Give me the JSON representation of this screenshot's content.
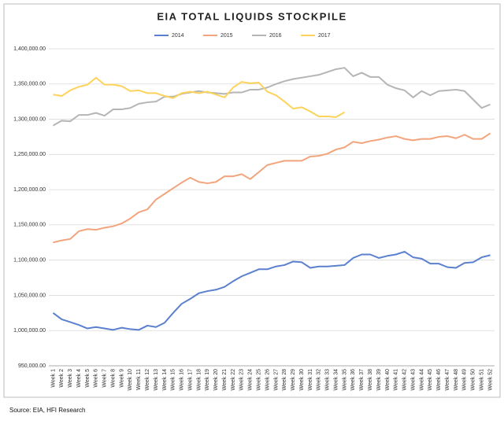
{
  "chart_data": {
    "type": "line",
    "title": "EIA TOTAL LIQUIDS STOCKPILE",
    "source": "Source: EIA, HFI Research",
    "categories": [
      "Week 1",
      "Week 2",
      "Week 3",
      "Week 4",
      "Week 5",
      "Week 6",
      "Week 7",
      "Week 8",
      "Week 9",
      "Week 10",
      "Week 11",
      "Week 12",
      "Week 13",
      "Week 14",
      "Week 15",
      "Week 16",
      "Week 17",
      "Week 18",
      "Week 19",
      "Week 20",
      "Week 21",
      "Week 22",
      "Week 23",
      "Week 24",
      "Week 25",
      "Week 26",
      "Week 27",
      "Week 28",
      "Week 29",
      "Week 30",
      "Week 31",
      "Week 32",
      "Week 33",
      "Week 34",
      "Week 35",
      "Week 36",
      "Week 37",
      "Week 38",
      "Week 39",
      "Week 40",
      "Week 41",
      "Week 42",
      "Week 43",
      "Week 44",
      "Week 45",
      "Week 46",
      "Week 47",
      "Week 48",
      "Week 49",
      "Week 50",
      "Week 51",
      "Week 52"
    ],
    "series": [
      {
        "name": "2014",
        "color": "#5b80cf",
        "values": [
          1025000,
          1016000,
          1012000,
          1008000,
          1003000,
          1005000,
          1003000,
          1001000,
          1004000,
          1002000,
          1001000,
          1007000,
          1005000,
          1011000,
          1025000,
          1038000,
          1045000,
          1053000,
          1056000,
          1058000,
          1062000,
          1070000,
          1077000,
          1082000,
          1087000,
          1087000,
          1091000,
          1093000,
          1098000,
          1097000,
          1089000,
          1091000,
          1091000,
          1092000,
          1093000,
          1103000,
          1108000,
          1108000,
          1103000,
          1106000,
          1108000,
          1112000,
          1104000,
          1102000,
          1095000,
          1095000,
          1090000,
          1089000,
          1096000,
          1097000,
          1104000,
          1107000
        ]
      },
      {
        "name": "2015",
        "color": "#f2a47c",
        "values": [
          1125000,
          1128000,
          1130000,
          1141000,
          1144000,
          1143000,
          1146000,
          1148000,
          1152000,
          1159000,
          1168000,
          1172000,
          1186000,
          1194000,
          1202000,
          1210000,
          1217000,
          1211000,
          1209000,
          1211000,
          1219000,
          1219000,
          1222000,
          1215000,
          1225000,
          1235000,
          1238000,
          1241000,
          1241000,
          1241000,
          1247000,
          1248000,
          1251000,
          1257000,
          1260000,
          1268000,
          1266000,
          1269000,
          1271000,
          1274000,
          1276000,
          1272000,
          1270000,
          1272000,
          1272000,
          1275000,
          1276000,
          1273000,
          1278000,
          1272000,
          1272000,
          1280000
        ]
      },
      {
        "name": "2016",
        "color": "#b5b5b5",
        "values": [
          1291000,
          1298000,
          1297000,
          1306000,
          1306000,
          1309000,
          1305000,
          1314000,
          1314000,
          1316000,
          1322000,
          1324000,
          1325000,
          1332000,
          1332000,
          1336000,
          1338000,
          1340000,
          1338000,
          1337000,
          1336000,
          1338000,
          1338000,
          1342000,
          1342000,
          1345000,
          1350000,
          1354000,
          1357000,
          1359000,
          1361000,
          1363000,
          1367000,
          1371000,
          1373000,
          1361000,
          1366000,
          1360000,
          1360000,
          1349000,
          1344000,
          1341000,
          1331000,
          1340000,
          1334000,
          1340000,
          1341000,
          1342000,
          1340000,
          1328000,
          1316000,
          1321000
        ]
      },
      {
        "name": "2017",
        "color": "#fdd35c",
        "values": [
          1335000,
          1333000,
          1341000,
          1346000,
          1349000,
          1359000,
          1349000,
          1349000,
          1347000,
          1340000,
          1341000,
          1337000,
          1337000,
          1333000,
          1330000,
          1337000,
          1339000,
          1337000,
          1339000,
          1335000,
          1331000,
          1345000,
          1353000,
          1351000,
          1352000,
          1339000,
          1334000,
          1325000,
          1315000,
          1317000,
          1311000,
          1304000,
          1304000,
          1303000,
          1310000,
          null,
          null,
          null,
          null,
          null,
          null,
          null,
          null,
          null,
          null,
          null,
          null,
          null,
          null,
          null,
          null,
          null
        ]
      }
    ],
    "ylim": [
      950000,
      1400000
    ],
    "yticks": [
      {
        "value": 950000,
        "label": "950,000.00"
      },
      {
        "value": 1000000,
        "label": "1,000,000.00"
      },
      {
        "value": 1050000,
        "label": "1,050,000.00"
      },
      {
        "value": 1100000,
        "label": "1,100,000.00"
      },
      {
        "value": 1150000,
        "label": "1,150,000.00"
      },
      {
        "value": 1200000,
        "label": "1,200,000.00"
      },
      {
        "value": 1250000,
        "label": "1,250,000.00"
      },
      {
        "value": 1300000,
        "label": "1,300,000.00"
      },
      {
        "value": 1350000,
        "label": "1,350,000.00"
      },
      {
        "value": 1400000,
        "label": "1,400,000.00"
      }
    ],
    "grid": true,
    "legend": "top"
  }
}
